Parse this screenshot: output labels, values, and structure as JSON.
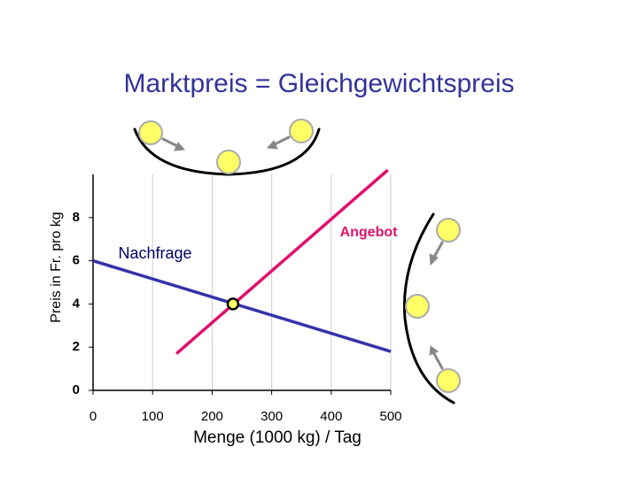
{
  "chart_data": {
    "type": "line",
    "title": "Marktpreis = Gleichgewichtspreis",
    "xlabel": "Menge (1000 kg) / Tag",
    "ylabel": "Preis in Fr. pro kg",
    "xlim": [
      0,
      500
    ],
    "ylim": [
      0,
      10
    ],
    "xticks": [
      0,
      100,
      200,
      300,
      400,
      500
    ],
    "yticks": [
      0,
      2,
      4,
      6,
      8
    ],
    "grid": true,
    "series": [
      {
        "name": "Nachfrage",
        "color": "#3333aa",
        "x": [
          0,
          500
        ],
        "values": [
          6,
          1.8
        ]
      },
      {
        "name": "Angebot",
        "color": "#e0106a",
        "x": [
          140,
          495
        ],
        "values": [
          1.7,
          10.2
        ]
      }
    ],
    "equilibrium": {
      "x": 235,
      "y": 4
    }
  }
}
